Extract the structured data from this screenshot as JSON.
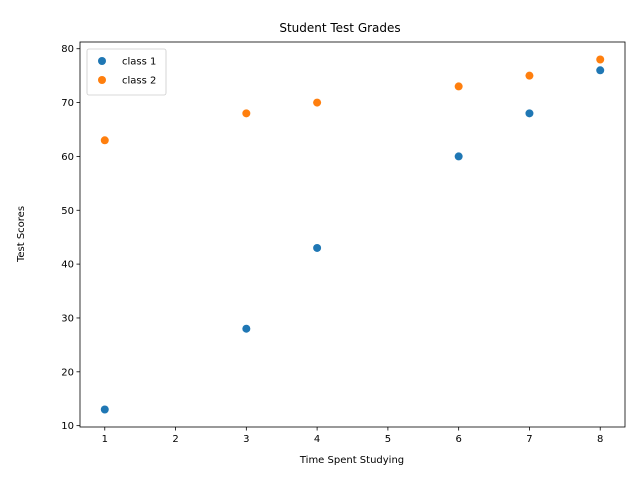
{
  "chart_data": {
    "type": "scatter",
    "title": "Student Test Grades",
    "xlabel": "Time Spent Studying",
    "ylabel": "Test Scores",
    "xlim": [
      0.65,
      8.35
    ],
    "ylim": [
      9.75,
      81.25
    ],
    "xticks": [
      1,
      2,
      3,
      4,
      5,
      6,
      7,
      8
    ],
    "yticks": [
      10,
      20,
      30,
      40,
      50,
      60,
      70,
      80
    ],
    "grid": false,
    "legend": {
      "position": "top-left"
    },
    "series": [
      {
        "name": "class 1",
        "color": "#1f77b4",
        "x": [
          1,
          3,
          4,
          6,
          7,
          8
        ],
        "y": [
          13,
          28,
          43,
          60,
          68,
          76
        ]
      },
      {
        "name": "class 2",
        "color": "#ff7f0e",
        "x": [
          1,
          3,
          4,
          6,
          7,
          8
        ],
        "y": [
          63,
          68,
          70,
          73,
          75,
          78
        ]
      }
    ]
  }
}
